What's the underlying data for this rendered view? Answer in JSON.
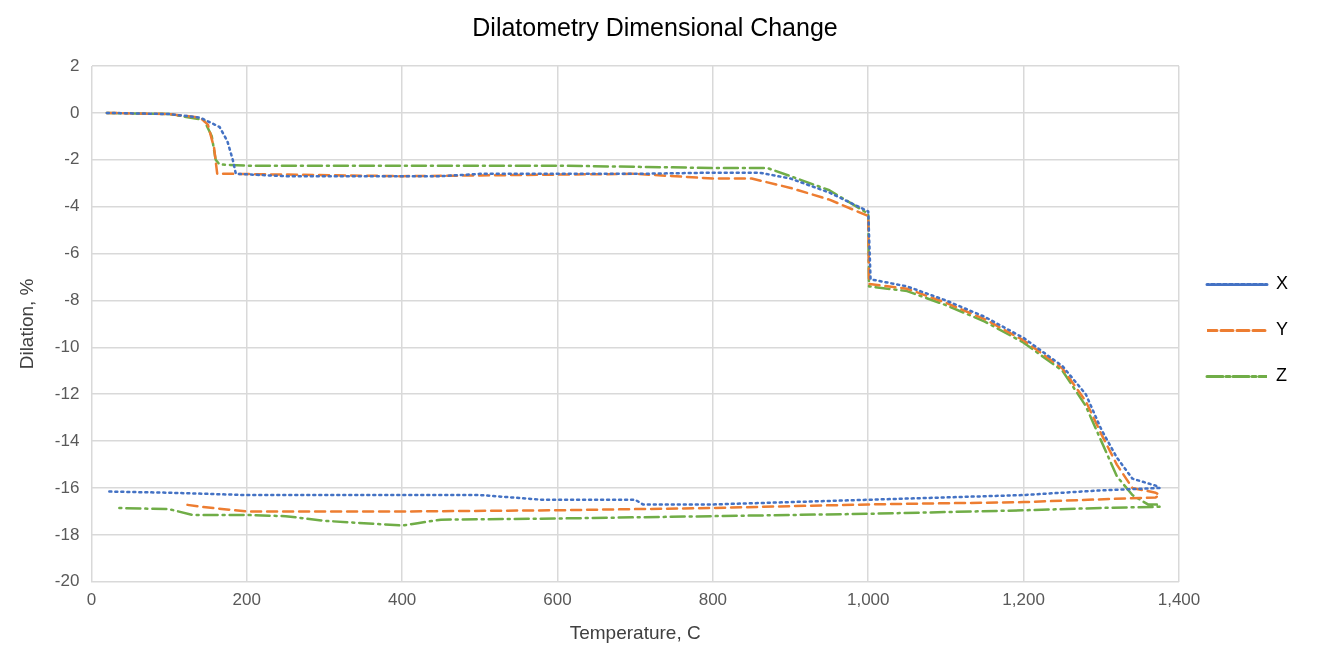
{
  "chart_data": {
    "type": "line",
    "title": "Dilatometry Dimensional Change",
    "xlabel": "Temperature, C",
    "ylabel": "Dilation, %",
    "xlim": [
      0,
      1400
    ],
    "xticks": [
      0,
      200,
      400,
      600,
      800,
      {
        "value": 1000,
        "label": "1,000"
      },
      {
        "value": 1200,
        "label": "1,200"
      },
      {
        "value": 1400,
        "label": "1,400"
      }
    ],
    "ylim": [
      -20,
      2
    ],
    "yticks": [
      -20,
      -18,
      -16,
      -14,
      -12,
      -10,
      -8,
      -6,
      -4,
      -2,
      0,
      2
    ],
    "grid": true,
    "legend": "right",
    "marker": "none",
    "series": [
      {
        "name": "X",
        "color": "#4472c4",
        "line_style": "dotted",
        "x": [
          20,
          100,
          140,
          165,
          175,
          182,
          186,
          250,
          400,
          450,
          500,
          700,
          800,
          860,
          900,
          950,
          1000,
          1003,
          1050,
          1100,
          1150,
          1200,
          1250,
          1280,
          1300,
          1320,
          1340,
          1370,
          1375,
          1300,
          1200,
          1000,
          800,
          710,
          700,
          580,
          500,
          200,
          100,
          20
        ],
        "values": [
          0,
          -0.05,
          -0.2,
          -0.6,
          -1.2,
          -2.0,
          -2.6,
          -2.7,
          -2.7,
          -2.7,
          -2.6,
          -2.6,
          -2.55,
          -2.55,
          -2.8,
          -3.4,
          -4.2,
          -7.1,
          -7.4,
          -8.0,
          -8.7,
          -9.6,
          -10.8,
          -12,
          -13.5,
          -14.7,
          -15.6,
          -15.9,
          -16.0,
          -16.1,
          -16.3,
          -16.5,
          -16.7,
          -16.7,
          -16.5,
          -16.5,
          -16.3,
          -16.3,
          -16.2,
          -16.15
        ]
      },
      {
        "name": "Y",
        "color": "#ed7d31",
        "line_style": "dashed",
        "x": [
          20,
          100,
          140,
          150,
          158,
          162,
          180,
          400,
          700,
          800,
          850,
          900,
          950,
          1000,
          1001,
          1050,
          1100,
          1150,
          1200,
          1250,
          1280,
          1300,
          1320,
          1340,
          1370,
          1375,
          1370,
          1200,
          1000,
          800,
          600,
          400,
          200,
          140,
          120
        ],
        "values": [
          0,
          -0.05,
          -0.2,
          -0.5,
          -1.5,
          -2.6,
          -2.6,
          -2.7,
          -2.6,
          -2.8,
          -2.8,
          -3.2,
          -3.7,
          -4.4,
          -7.3,
          -7.5,
          -8.1,
          -8.8,
          -9.7,
          -10.9,
          -12.3,
          -13.7,
          -15,
          -16,
          -16.2,
          -16.3,
          -16.4,
          -16.6,
          -16.7,
          -16.85,
          -16.95,
          -17.0,
          -17.0,
          -16.8,
          -16.7
        ]
      },
      {
        "name": "Z",
        "color": "#70ad47",
        "line_style": "dashdot",
        "x": [
          20,
          100,
          145,
          155,
          160,
          165,
          200,
          400,
          600,
          800,
          870,
          900,
          950,
          1000,
          1001,
          1050,
          1100,
          1150,
          1200,
          1250,
          1280,
          1300,
          1320,
          1340,
          1360,
          1375,
          1375,
          1300,
          1200,
          1000,
          800,
          600,
          450,
          420,
          400,
          300,
          250,
          200,
          130,
          100,
          30
        ],
        "values": [
          0,
          -0.05,
          -0.3,
          -1.0,
          -2.0,
          -2.2,
          -2.25,
          -2.25,
          -2.25,
          -2.35,
          -2.35,
          -2.7,
          -3.3,
          -4.3,
          -7.4,
          -7.6,
          -8.2,
          -8.9,
          -9.8,
          -11,
          -12.5,
          -14,
          -15.5,
          -16.3,
          -16.7,
          -16.7,
          -16.8,
          -16.85,
          -16.95,
          -17.1,
          -17.2,
          -17.3,
          -17.35,
          -17.5,
          -17.6,
          -17.4,
          -17.2,
          -17.15,
          -17.15,
          -16.9,
          -16.85
        ]
      }
    ]
  }
}
